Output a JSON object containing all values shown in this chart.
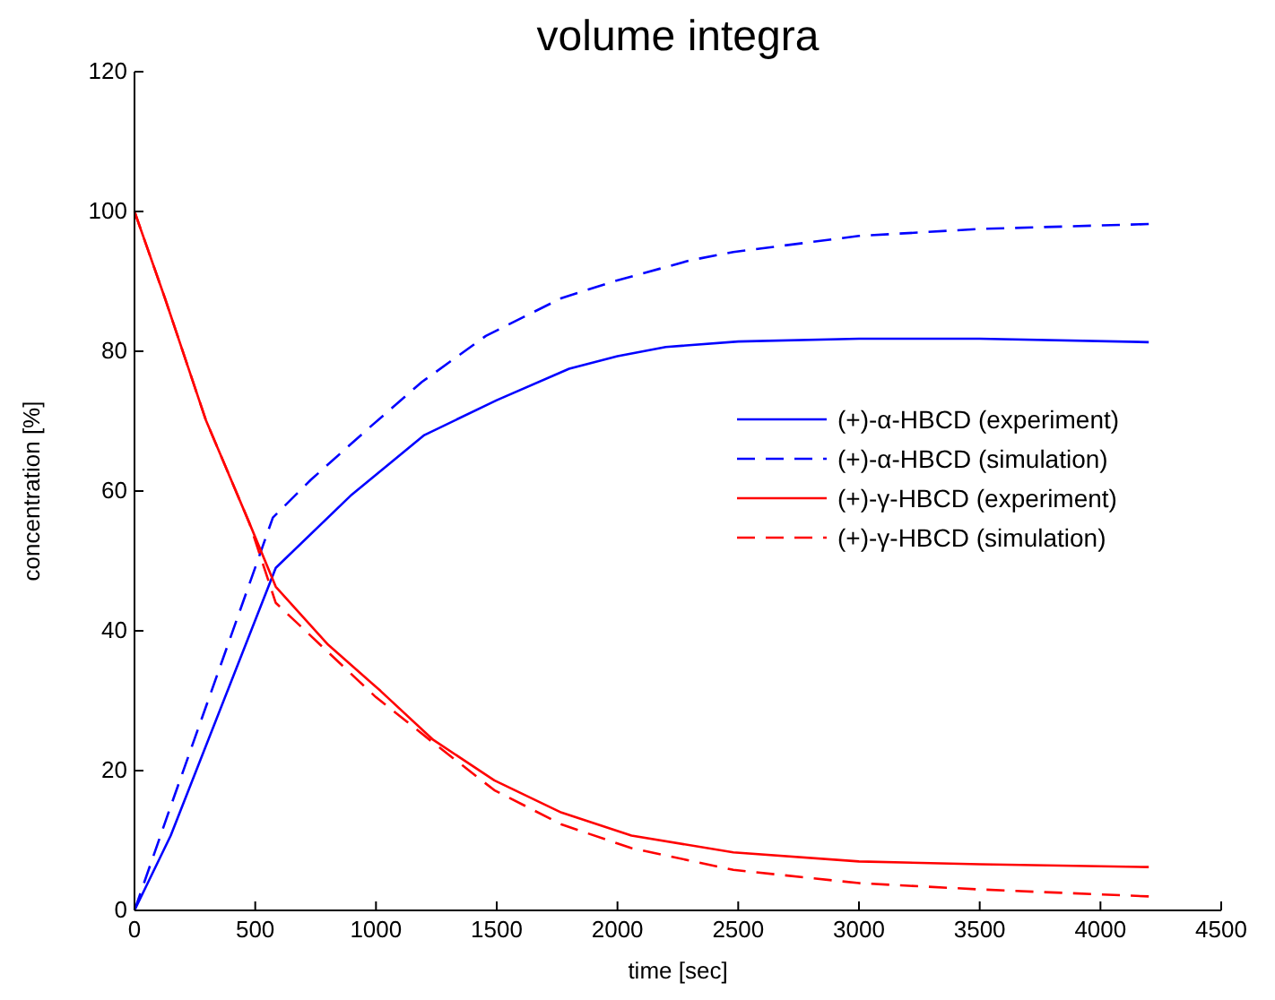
{
  "chart_data": {
    "type": "line",
    "title": "volume integra",
    "xlabel": "time [sec]",
    "ylabel": "concentration [%]",
    "xlim": [
      0,
      4500
    ],
    "ylim": [
      0,
      120
    ],
    "xticks": [
      0,
      500,
      1000,
      1500,
      2000,
      2500,
      3000,
      3500,
      4000,
      4500
    ],
    "yticks": [
      0,
      20,
      40,
      60,
      80,
      100,
      120
    ],
    "legend": "right",
    "grid": false,
    "series": [
      {
        "name": "(+)-α-HBCD (experiment)",
        "color": "#0000ff",
        "line_style": "solid",
        "x": [
          0,
          150,
          585,
          900,
          1200,
          1500,
          1800,
          2000,
          2200,
          2500,
          3000,
          3500,
          4200
        ],
        "values": [
          0,
          10.7,
          49,
          59.5,
          68,
          73,
          77.5,
          79.3,
          80.6,
          81.4,
          81.8,
          81.8,
          81.3
        ]
      },
      {
        "name": "(+)-α-HBCD (simulation)",
        "color": "#0000ff",
        "line_style": "dashed",
        "x": [
          0,
          150,
          573,
          730,
          970,
          1190,
          1455,
          1768,
          1985,
          2300,
          2480,
          3000,
          3500,
          4200
        ],
        "values": [
          0,
          14.9,
          56.2,
          61.6,
          69,
          75.6,
          82.2,
          87.6,
          90,
          93,
          94.2,
          96.5,
          97.5,
          98.2
        ]
      },
      {
        "name": "(+)-γ-HBCD (experiment)",
        "color": "#ff0000",
        "line_style": "solid",
        "x": [
          0,
          126,
          295,
          476,
          585,
          802,
          1019,
          1237,
          1490,
          1768,
          2058,
          2480,
          3000,
          3500,
          4200
        ],
        "values": [
          100,
          87.6,
          70.2,
          55.4,
          46.3,
          38,
          31.4,
          24.4,
          18.6,
          14,
          10.7,
          8.3,
          7,
          6.6,
          6.2
        ]
      },
      {
        "name": "(+)-γ-HBCD (simulation)",
        "color": "#ff0000",
        "line_style": "dashed",
        "x": [
          0,
          126,
          295,
          476,
          585,
          800,
          1000,
          1237,
          1490,
          1768,
          2058,
          2480,
          3000,
          3500,
          4200
        ],
        "values": [
          100,
          87.6,
          70.2,
          55.4,
          44,
          37,
          30.5,
          24,
          17.2,
          12.3,
          8.9,
          5.8,
          3.9,
          3,
          2
        ]
      }
    ]
  }
}
